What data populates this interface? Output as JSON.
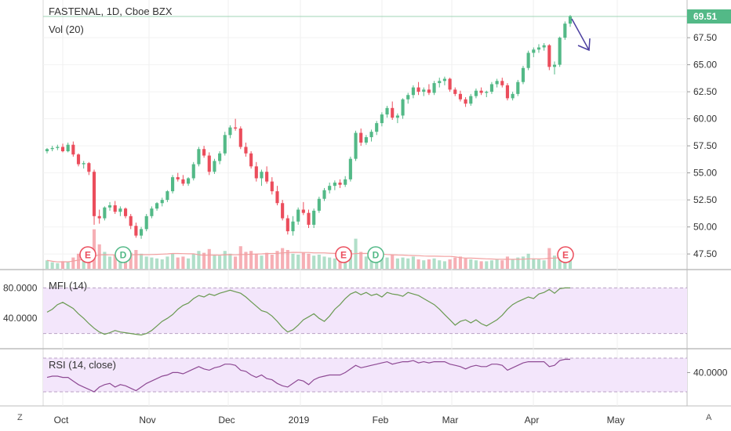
{
  "header": {
    "symbol_line": "FASTENAL, 1D, Cboe BZX",
    "volume_label": "Vol (20)"
  },
  "price_axis": {
    "ticks": [
      "67.50",
      "65.00",
      "62.50",
      "60.00",
      "57.50",
      "55.00",
      "52.50",
      "50.00",
      "47.50"
    ],
    "last_price": "69.51"
  },
  "mfi": {
    "label": "MFI (14)",
    "ticks": [
      "80.0000",
      "40.0000"
    ]
  },
  "rsi": {
    "label": "RSI (14, close)",
    "ticks": [
      "40.0000"
    ]
  },
  "time_axis": [
    "Oct",
    "Nov",
    "Dec",
    "2019",
    "Feb",
    "Mar",
    "Apr",
    "May"
  ],
  "buttons": {
    "left": "Z",
    "right": "A"
  },
  "events": [
    {
      "type": "E",
      "month": "Oct"
    },
    {
      "type": "D",
      "month": "Oct"
    },
    {
      "type": "E",
      "month": "Jan"
    },
    {
      "type": "D",
      "month": "Jan"
    },
    {
      "type": "E",
      "month": "Apr"
    }
  ],
  "colors": {
    "up": "#53b987",
    "down": "#eb4d5c",
    "mfi": "#6a9a52",
    "rsi": "#8e4a94",
    "band": "#f3e6fb",
    "annotation": "#4b3fa0",
    "last_line": "#9fd5b6"
  },
  "chart_data": {
    "type": "candlestick",
    "title": "FASTENAL, 1D, Cboe BZX",
    "y_range": [
      46.5,
      70.5
    ],
    "x_labels": [
      "Oct",
      "Nov",
      "Dec",
      "2019",
      "Feb",
      "Mar",
      "Apr",
      "May"
    ],
    "ohlc": [
      [
        57.0,
        57.3,
        56.8,
        57.2
      ],
      [
        57.2,
        57.5,
        57.0,
        57.3
      ],
      [
        57.3,
        57.6,
        57.1,
        57.4
      ],
      [
        57.4,
        57.7,
        56.9,
        57.0
      ],
      [
        57.0,
        57.8,
        56.9,
        57.6
      ],
      [
        57.6,
        57.9,
        56.5,
        56.7
      ],
      [
        56.7,
        56.8,
        55.6,
        55.8
      ],
      [
        55.8,
        56.1,
        55.4,
        55.9
      ],
      [
        55.9,
        56.0,
        54.8,
        55.1
      ],
      [
        55.1,
        55.3,
        50.2,
        51.0
      ],
      [
        51.0,
        51.6,
        50.3,
        50.8
      ],
      [
        50.8,
        51.9,
        50.6,
        51.8
      ],
      [
        51.8,
        52.3,
        51.5,
        52.0
      ],
      [
        52.0,
        52.4,
        51.2,
        51.4
      ],
      [
        51.4,
        51.9,
        51.0,
        51.7
      ],
      [
        51.7,
        51.8,
        50.8,
        51.0
      ],
      [
        51.0,
        51.2,
        49.8,
        50.1
      ],
      [
        50.1,
        50.4,
        49.0,
        49.2
      ],
      [
        49.2,
        50.0,
        48.9,
        49.8
      ],
      [
        49.8,
        51.2,
        49.6,
        51.0
      ],
      [
        51.0,
        51.9,
        50.8,
        51.7
      ],
      [
        51.7,
        52.3,
        51.5,
        52.2
      ],
      [
        52.2,
        52.7,
        51.9,
        52.5
      ],
      [
        52.5,
        53.4,
        52.3,
        53.3
      ],
      [
        53.3,
        54.8,
        53.1,
        54.6
      ],
      [
        54.6,
        55.0,
        54.2,
        54.4
      ],
      [
        54.4,
        54.8,
        53.8,
        54.0
      ],
      [
        54.0,
        54.6,
        53.8,
        54.5
      ],
      [
        54.5,
        56.0,
        54.3,
        55.8
      ],
      [
        55.8,
        57.4,
        55.6,
        57.2
      ],
      [
        57.2,
        57.5,
        56.4,
        56.6
      ],
      [
        56.6,
        56.9,
        54.8,
        55.1
      ],
      [
        55.1,
        56.3,
        54.9,
        56.1
      ],
      [
        56.1,
        57.0,
        55.8,
        56.8
      ],
      [
        56.8,
        58.8,
        56.6,
        58.5
      ],
      [
        58.5,
        59.4,
        58.2,
        59.2
      ],
      [
        59.2,
        60.0,
        58.9,
        59.1
      ],
      [
        59.1,
        59.3,
        57.2,
        57.4
      ],
      [
        57.4,
        57.8,
        56.5,
        56.8
      ],
      [
        56.8,
        57.0,
        55.4,
        55.6
      ],
      [
        55.6,
        56.0,
        54.2,
        54.5
      ],
      [
        54.5,
        55.3,
        53.8,
        55.1
      ],
      [
        55.1,
        55.6,
        54.0,
        54.2
      ],
      [
        54.2,
        54.6,
        53.0,
        53.3
      ],
      [
        53.3,
        53.8,
        52.0,
        52.2
      ],
      [
        52.2,
        52.5,
        50.6,
        50.8
      ],
      [
        50.8,
        51.1,
        49.3,
        49.6
      ],
      [
        49.6,
        51.0,
        49.2,
        50.5
      ],
      [
        50.5,
        51.8,
        50.2,
        51.6
      ],
      [
        51.6,
        52.3,
        51.1,
        51.3
      ],
      [
        51.3,
        51.6,
        49.9,
        50.2
      ],
      [
        50.2,
        51.7,
        49.9,
        51.5
      ],
      [
        51.5,
        52.8,
        51.3,
        52.6
      ],
      [
        52.6,
        53.6,
        52.4,
        53.4
      ],
      [
        53.4,
        54.1,
        53.1,
        53.8
      ],
      [
        53.8,
        54.3,
        53.4,
        54.1
      ],
      [
        54.1,
        54.4,
        53.6,
        53.9
      ],
      [
        53.9,
        54.7,
        53.7,
        54.4
      ],
      [
        54.4,
        56.5,
        54.2,
        56.3
      ],
      [
        56.3,
        58.9,
        56.1,
        58.7
      ],
      [
        58.7,
        59.1,
        57.5,
        57.8
      ],
      [
        57.8,
        58.5,
        57.6,
        58.3
      ],
      [
        58.3,
        59.0,
        57.9,
        58.8
      ],
      [
        58.8,
        59.8,
        58.5,
        59.6
      ],
      [
        59.6,
        60.6,
        59.3,
        60.4
      ],
      [
        60.4,
        61.2,
        60.1,
        61.0
      ],
      [
        61.0,
        61.6,
        59.9,
        60.1
      ],
      [
        60.1,
        60.5,
        59.6,
        60.3
      ],
      [
        60.3,
        61.9,
        60.0,
        61.8
      ],
      [
        61.8,
        62.4,
        61.4,
        62.2
      ],
      [
        62.2,
        63.1,
        61.9,
        62.9
      ],
      [
        62.9,
        63.4,
        62.2,
        62.5
      ],
      [
        62.5,
        62.9,
        62.1,
        62.7
      ],
      [
        62.7,
        63.2,
        62.2,
        62.4
      ],
      [
        62.4,
        63.5,
        62.2,
        63.3
      ],
      [
        63.3,
        63.8,
        62.9,
        63.5
      ],
      [
        63.5,
        63.9,
        63.1,
        63.7
      ],
      [
        63.7,
        63.8,
        62.5,
        62.7
      ],
      [
        62.7,
        62.9,
        62.1,
        62.3
      ],
      [
        62.3,
        62.6,
        61.6,
        61.8
      ],
      [
        61.8,
        62.0,
        61.1,
        61.4
      ],
      [
        61.4,
        62.3,
        61.2,
        62.1
      ],
      [
        62.1,
        62.8,
        61.9,
        62.6
      ],
      [
        62.6,
        62.9,
        62.2,
        62.4
      ],
      [
        62.4,
        62.6,
        62.0,
        62.5
      ],
      [
        62.5,
        63.4,
        62.3,
        63.2
      ],
      [
        63.2,
        63.7,
        62.9,
        63.5
      ],
      [
        63.5,
        63.8,
        62.9,
        63.1
      ],
      [
        63.1,
        63.3,
        61.7,
        61.9
      ],
      [
        61.9,
        62.5,
        61.7,
        62.3
      ],
      [
        62.3,
        63.6,
        62.1,
        63.4
      ],
      [
        63.4,
        64.9,
        63.2,
        64.7
      ],
      [
        64.7,
        66.3,
        64.5,
        66.1
      ],
      [
        66.1,
        66.6,
        65.7,
        66.4
      ],
      [
        66.4,
        66.9,
        66.1,
        66.6
      ],
      [
        66.6,
        67.0,
        66.3,
        66.8
      ],
      [
        66.8,
        66.9,
        64.5,
        64.8
      ],
      [
        64.8,
        65.3,
        64.1,
        65.0
      ],
      [
        65.0,
        67.6,
        64.8,
        67.5
      ],
      [
        67.5,
        69.0,
        67.3,
        68.8
      ],
      [
        68.8,
        69.6,
        68.5,
        69.5
      ]
    ],
    "volume_relative": [
      0.9,
      0.7,
      0.6,
      0.8,
      0.7,
      1.2,
      1.6,
      1.4,
      1.5,
      4.2,
      2.6,
      1.8,
      1.3,
      1.5,
      1.2,
      1.4,
      1.7,
      2.0,
      1.6,
      1.3,
      1.2,
      1.1,
      1.0,
      1.3,
      1.6,
      1.2,
      1.3,
      1.1,
      1.6,
      1.9,
      1.7,
      2.1,
      1.5,
      1.4,
      1.9,
      1.6,
      1.3,
      2.4,
      1.8,
      1.9,
      1.6,
      1.4,
      1.7,
      1.5,
      1.9,
      2.2,
      2.0,
      1.6,
      1.5,
      1.7,
      1.6,
      1.4,
      1.5,
      1.3,
      1.2,
      1.1,
      1.0,
      1.1,
      2.0,
      3.2,
      1.8,
      1.3,
      1.2,
      1.4,
      1.3,
      1.2,
      1.5,
      1.1,
      1.2,
      1.1,
      1.3,
      1.0,
      0.9,
      1.0,
      1.1,
      0.9,
      0.8,
      1.0,
      1.2,
      1.3,
      1.1,
      1.0,
      0.9,
      0.8,
      0.8,
      0.9,
      1.0,
      0.9,
      1.3,
      1.0,
      1.2,
      1.3,
      1.6,
      1.1,
      1.0,
      0.9,
      2.2,
      1.4,
      1.9,
      1.5,
      1.2
    ],
    "mfi_values": [
      48,
      52,
      58,
      61,
      57,
      53,
      46,
      40,
      33,
      27,
      22,
      19,
      21,
      24,
      22,
      21,
      20,
      19,
      18,
      20,
      24,
      30,
      36,
      40,
      45,
      52,
      57,
      60,
      66,
      70,
      68,
      72,
      70,
      73,
      75,
      77,
      75,
      73,
      68,
      62,
      56,
      50,
      48,
      43,
      36,
      28,
      22,
      25,
      31,
      38,
      42,
      46,
      40,
      36,
      43,
      52,
      58,
      66,
      72,
      75,
      71,
      74,
      70,
      72,
      68,
      74,
      72,
      71,
      69,
      74,
      72,
      70,
      66,
      62,
      58,
      52,
      45,
      38,
      31,
      36,
      38,
      34,
      38,
      33,
      30,
      34,
      38,
      44,
      52,
      58,
      62,
      65,
      68,
      66,
      72,
      74,
      78,
      73,
      79,
      80,
      80
    ],
    "rsi_values": [
      36,
      37,
      37,
      36,
      36,
      33,
      30,
      28,
      26,
      24,
      28,
      30,
      31,
      28,
      30,
      29,
      27,
      25,
      28,
      31,
      33,
      35,
      37,
      38,
      40,
      40,
      39,
      41,
      43,
      45,
      43,
      42,
      44,
      45,
      47,
      47,
      46,
      42,
      41,
      38,
      36,
      38,
      35,
      34,
      31,
      29,
      28,
      31,
      34,
      33,
      30,
      34,
      36,
      37,
      38,
      38,
      38,
      40,
      43,
      46,
      44,
      45,
      46,
      47,
      48,
      49,
      47,
      48,
      49,
      49,
      50,
      48,
      49,
      48,
      49,
      49,
      49,
      47,
      46,
      45,
      43,
      45,
      46,
      45,
      45,
      47,
      47,
      46,
      42,
      44,
      46,
      48,
      49,
      49,
      49,
      49,
      45,
      46,
      50,
      51,
      51
    ],
    "mfi_bands": [
      20,
      80
    ],
    "rsi_bands": [
      30,
      70
    ]
  }
}
